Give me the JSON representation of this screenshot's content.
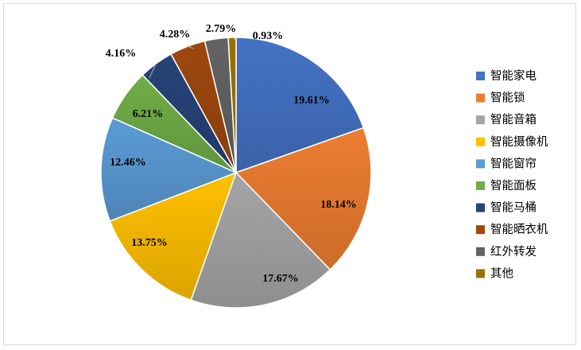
{
  "chart_data": {
    "type": "pie",
    "title": "",
    "legend_position": "right",
    "categories": [
      "智能家电",
      "智能锁",
      "智能音箱",
      "智能摄像机",
      "智能窗帘",
      "智能面板",
      "智能马桶",
      "智能晒衣机",
      "红外转发",
      "其他"
    ],
    "values": [
      19.61,
      18.14,
      17.67,
      13.75,
      12.46,
      6.21,
      4.16,
      4.28,
      2.79,
      0.93
    ],
    "labels": [
      "19.61%",
      "18.14%",
      "17.67%",
      "13.75%",
      "12.46%",
      "6.21%",
      "4.16%",
      "4.28%",
      "2.79%",
      "0.93%"
    ],
    "colors": [
      "#4472C4",
      "#ED7D31",
      "#A5A5A5",
      "#FFC000",
      "#5B9BD5",
      "#70AD47",
      "#264478",
      "#9E480E",
      "#636363",
      "#997300"
    ],
    "unit": "%"
  }
}
